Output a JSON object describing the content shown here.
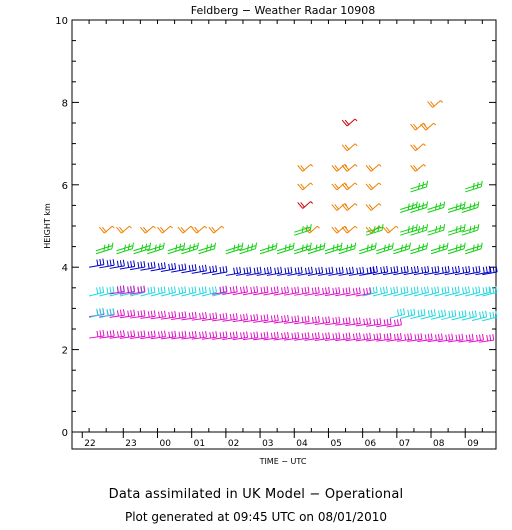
{
  "chart_data": {
    "type": "wind_profile",
    "title": "Feldberg − Weather Radar 10908",
    "xlabel": "TIME − UTC",
    "ylabel": "HEIGHT km",
    "ylim": [
      0,
      10
    ],
    "yticks": [
      0,
      2,
      4,
      6,
      8,
      10
    ],
    "xlim": [
      -2.5,
      9.9
    ],
    "hour_ticks": [
      "22",
      "23",
      "00",
      "01",
      "02",
      "03",
      "04",
      "05",
      "06",
      "07",
      "08",
      "09"
    ],
    "hour_tick_values": [
      -2.2,
      -1.0,
      0.0,
      1.0,
      2.0,
      3.0,
      4.0,
      5.0,
      6.0,
      7.0,
      8.0,
      9.0
    ],
    "colors": {
      "magenta": "#e010c8",
      "cyan": "#20d8e0",
      "blue": "#0000c8",
      "green": "#10d010",
      "orange": "#f08000",
      "red": "#d00000"
    },
    "series": [
      {
        "color": "magenta",
        "height_start": 2.28,
        "height_end": 2.18,
        "times": [
          -2.0,
          -1.7,
          -1.4,
          -1.1,
          -0.8,
          -0.5,
          -0.2,
          0.1,
          0.4,
          0.7,
          1.0,
          1.3,
          1.6,
          1.9,
          2.2,
          2.5,
          2.8,
          3.1,
          3.4,
          3.7,
          4.0,
          4.3,
          4.6,
          4.9,
          5.2,
          5.5,
          5.8,
          6.1,
          6.4,
          6.7,
          7.0,
          7.3,
          7.6,
          7.9,
          8.2,
          8.5,
          8.8,
          9.1,
          9.4
        ]
      },
      {
        "color": "magenta",
        "height_start": 2.8,
        "height_end": 2.55,
        "times": [
          -2.0,
          -1.7,
          -1.4,
          -1.1,
          -0.8,
          -0.5,
          -0.2,
          0.1,
          0.4,
          0.7,
          1.0,
          1.3,
          1.6,
          1.9,
          2.2,
          2.5,
          2.8,
          3.1,
          3.4,
          3.7,
          4.0,
          4.3,
          4.6,
          4.9,
          5.2,
          5.5,
          5.8,
          6.1,
          6.4,
          6.7
        ]
      },
      {
        "color": "cyan",
        "height_start": 2.78,
        "height_end": 2.7,
        "times": [
          -2.0,
          -1.7,
          6.8,
          7.1,
          7.4,
          7.7,
          8.0,
          8.3,
          8.6,
          8.9,
          9.2,
          9.5
        ]
      },
      {
        "color": "cyan",
        "height_start": 3.3,
        "height_end": 3.3,
        "times": [
          -2.0,
          -1.7,
          -1.4,
          -1.1,
          -0.8,
          -0.5,
          -0.2,
          0.1,
          0.4,
          0.7,
          1.0,
          1.3,
          1.6,
          6.0,
          6.3,
          6.6,
          6.9,
          7.2,
          7.5,
          7.8,
          8.1,
          8.4,
          8.7,
          9.0,
          9.3,
          9.5
        ]
      },
      {
        "color": "magenta",
        "height_start": 3.35,
        "height_end": 3.3,
        "times": [
          -1.4,
          -1.1,
          -0.8,
          1.6,
          1.9,
          2.2,
          2.5,
          2.8,
          3.1,
          3.4,
          3.7,
          4.0,
          4.3,
          4.6,
          4.9,
          5.2,
          5.5,
          5.8
        ]
      },
      {
        "color": "blue",
        "height_start": 4.0,
        "height_end": 3.82,
        "times": [
          -2.0,
          -1.7,
          -1.4,
          -1.1,
          -0.8,
          -0.5,
          -0.2,
          0.1,
          0.4,
          0.7,
          1.0,
          1.3,
          1.6
        ]
      },
      {
        "color": "blue",
        "height_start": 3.8,
        "height_end": 3.8,
        "times": [
          2.0,
          2.3,
          2.6,
          2.9,
          3.2,
          3.5,
          3.8,
          4.1,
          4.4,
          4.7,
          5.0,
          5.3,
          5.6,
          5.9
        ]
      },
      {
        "color": "blue",
        "height_start": 3.82,
        "height_end": 3.82,
        "times": [
          6.0,
          6.3,
          6.6,
          6.9,
          7.2,
          7.5,
          7.8,
          8.1,
          8.4,
          8.7,
          9.0,
          9.3,
          9.5
        ]
      },
      {
        "color": "green",
        "height_start": 4.4,
        "height_end": 4.4,
        "times": [
          -1.8,
          -1.2,
          -0.7,
          -0.3,
          0.3,
          0.7,
          1.2,
          2.0,
          2.4,
          3.0,
          3.5,
          4.0,
          4.4,
          4.9,
          5.3,
          5.9,
          6.4,
          6.9,
          7.4,
          8.0,
          8.5,
          9.0
        ]
      },
      {
        "color": "orange",
        "height_start": 4.85,
        "height_end": 4.85,
        "times": [
          -1.7,
          -1.2,
          -0.5,
          0.0,
          0.6,
          1.0,
          1.5,
          4.3,
          5.1,
          5.4,
          6.1,
          6.6
        ]
      },
      {
        "color": "green",
        "height_start": 4.85,
        "height_end": 4.85,
        "times": [
          4.0,
          6.1,
          7.1,
          7.4,
          7.9,
          8.5,
          8.9
        ]
      },
      {
        "color": "green",
        "height_start": 5.4,
        "height_end": 5.4,
        "times": [
          7.1,
          7.4,
          7.9,
          8.5,
          8.9
        ]
      },
      {
        "color": "orange",
        "height_start": 5.4,
        "height_end": 5.4,
        "times": [
          5.1,
          5.4,
          6.1
        ]
      },
      {
        "color": "red",
        "height_start": 5.45,
        "height_end": 5.45,
        "times": [
          4.1
        ]
      },
      {
        "color": "orange",
        "height_start": 5.9,
        "height_end": 5.9,
        "times": [
          4.1,
          5.1,
          5.4,
          6.1
        ]
      },
      {
        "color": "green",
        "height_start": 5.9,
        "height_end": 5.9,
        "times": [
          7.4,
          9.0
        ]
      },
      {
        "color": "orange",
        "height_start": 6.35,
        "height_end": 6.35,
        "times": [
          4.1,
          5.1,
          5.4,
          6.1,
          7.4
        ]
      },
      {
        "color": "orange",
        "height_start": 6.85,
        "height_end": 6.85,
        "times": [
          5.4,
          7.4
        ]
      },
      {
        "color": "orange",
        "height_start": 7.35,
        "height_end": 7.35,
        "times": [
          7.4,
          7.7
        ]
      },
      {
        "color": "red",
        "height_start": 7.45,
        "height_end": 7.45,
        "times": [
          5.4
        ]
      },
      {
        "color": "orange",
        "height_start": 7.9,
        "height_end": 7.9,
        "times": [
          7.9
        ]
      }
    ]
  },
  "footer": {
    "line1": "Data assimilated in UK Model − Operational",
    "line2": "Plot generated at 09:45 UTC on 08/01/2010"
  }
}
